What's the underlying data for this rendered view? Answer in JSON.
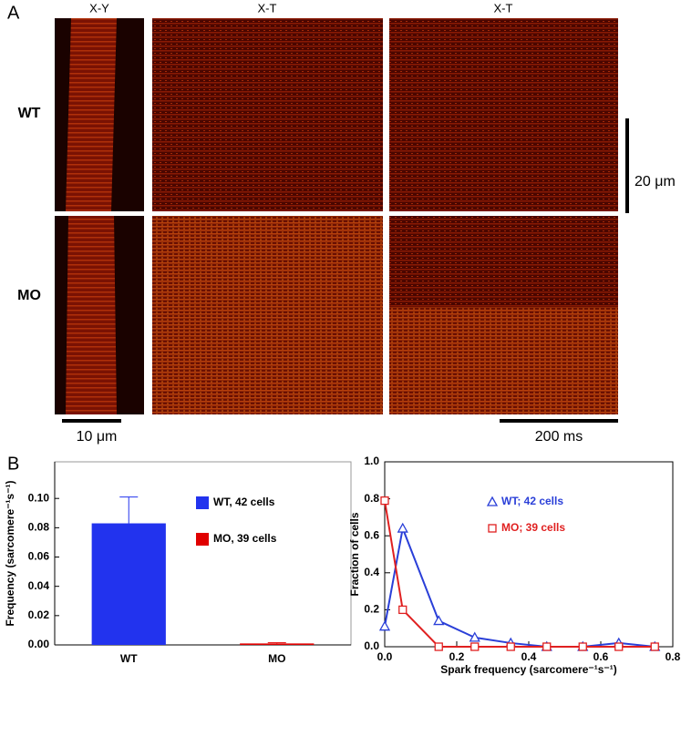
{
  "panel_labels": [
    "A",
    "B"
  ],
  "image_panel": {
    "column_titles": [
      "X-Y",
      "X-T",
      "X-T"
    ],
    "row_labels": [
      "WT",
      "MO"
    ],
    "scale_bars": [
      "20 μm",
      "10 μm",
      "200 ms"
    ]
  },
  "chart_data": [
    {
      "type": "bar",
      "ylabel": "Frequency (sarcomere⁻¹s⁻¹)",
      "categories": [
        "WT",
        "MO"
      ],
      "series": [
        {
          "name": "WT, 42 cells",
          "color": "#2233ee"
        },
        {
          "name": "MO, 39 cells",
          "color": "#e00000"
        }
      ],
      "values": [
        0.083,
        0.001
      ],
      "errors": [
        0.018,
        0.0005
      ],
      "ylim": [
        0,
        0.125
      ],
      "yticks": [
        {
          "value": 0,
          "label": "0.00"
        },
        {
          "value": 0.02,
          "label": "0.02"
        },
        {
          "value": 0.04,
          "label": "0.04"
        },
        {
          "value": 0.06,
          "label": "0.06"
        },
        {
          "value": 0.08,
          "label": "0.08"
        },
        {
          "value": 0.1,
          "label": "0.10"
        }
      ]
    },
    {
      "type": "line",
      "xlabel": "Spark frequency (sarcomere⁻¹s⁻¹)",
      "ylabel": "Fraction of cells",
      "x": [
        0,
        0.05,
        0.15,
        0.25,
        0.35,
        0.45,
        0.55,
        0.65,
        0.75
      ],
      "series": [
        {
          "name": "WT; 42 cells",
          "color": "#2a3fd8",
          "marker": "triangle",
          "values": [
            0.11,
            0.64,
            0.14,
            0.05,
            0.02,
            0,
            0,
            0.02,
            0
          ]
        },
        {
          "name": "MO; 39 cells",
          "color": "#e02020",
          "marker": "square",
          "values": [
            0.79,
            0.2,
            0,
            0,
            0,
            0,
            0,
            0,
            0
          ]
        }
      ],
      "xlim": [
        0,
        0.8
      ],
      "ylim": [
        0,
        1
      ],
      "xticks": [
        {
          "value": 0,
          "label": "0.0"
        },
        {
          "value": 0.2,
          "label": "0.2"
        },
        {
          "value": 0.4,
          "label": "0.4"
        },
        {
          "value": 0.6,
          "label": "0.6"
        },
        {
          "value": 0.8,
          "label": "0.8"
        }
      ],
      "yticks": [
        {
          "value": 0,
          "label": "0.0"
        },
        {
          "value": 0.2,
          "label": "0.2"
        },
        {
          "value": 0.4,
          "label": "0.4"
        },
        {
          "value": 0.6,
          "label": "0.6"
        },
        {
          "value": 0.8,
          "label": "0.8"
        },
        {
          "value": 1,
          "label": "1.0"
        }
      ]
    }
  ]
}
